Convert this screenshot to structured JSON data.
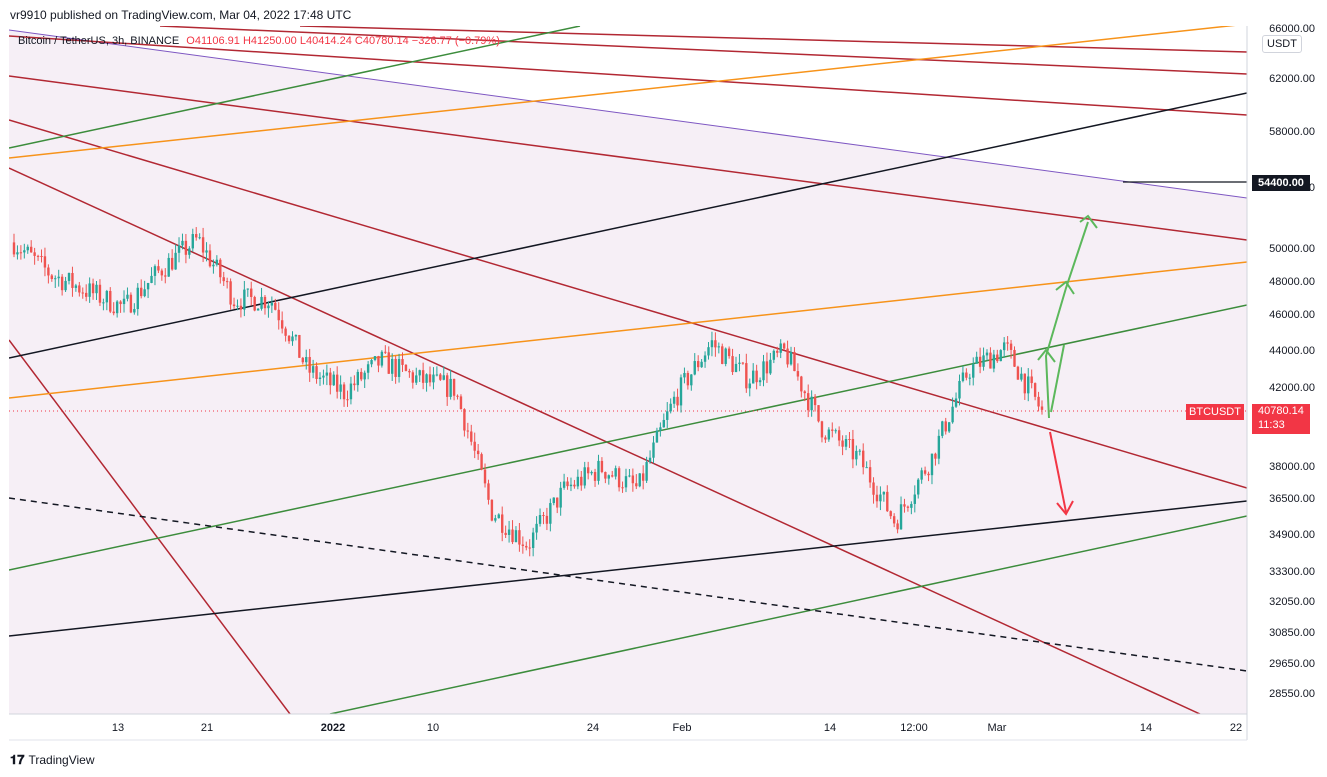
{
  "header": {
    "published": "vr9910 published on TradingView.com, Mar 04, 2022 17:48 UTC"
  },
  "legend": {
    "symbol": "Bitcoin / TetherUS, 3h, BINANCE",
    "open": "O41106.91",
    "high": "H41250.00",
    "low": "L40414.24",
    "close": "C40780.14",
    "change": "−326.77 (−0.79%)"
  },
  "unit": "USDT",
  "symbol_tag": "BTCUSDT",
  "current_price": "40780.14",
  "countdown": "11:33",
  "level_tag": "54400.00",
  "footer": {
    "brand": "TradingView"
  },
  "colors": {
    "red_line": "#b22833",
    "green_line": "#3c8c3c",
    "orange_line": "#f7931a",
    "black_line": "#131722",
    "purple_line": "#7e57c2",
    "up_candle": "#26a69a",
    "down_candle": "#ef5350",
    "zone_fill": "#f5eef6",
    "arrow_up": "#5cb85c",
    "arrow_down": "#f23645"
  },
  "chart_data": {
    "type": "candlestick",
    "title": "Bitcoin / TetherUS, 3h, BINANCE",
    "y_axis_ticks": [
      {
        "value": 66000,
        "label": "66000.00"
      },
      {
        "value": 62000,
        "label": "62000.00"
      },
      {
        "value": 58000,
        "label": "58000.00"
      },
      {
        "value": 54000,
        "label": "54000.00"
      },
      {
        "value": 50000,
        "label": "50000.00"
      },
      {
        "value": 48000,
        "label": "48000.00"
      },
      {
        "value": 46000,
        "label": "46000.00"
      },
      {
        "value": 44000,
        "label": "44000.00"
      },
      {
        "value": 42000,
        "label": "42000.00"
      },
      {
        "value": 38000,
        "label": "38000.00"
      },
      {
        "value": 36500,
        "label": "36500.00"
      },
      {
        "value": 34900,
        "label": "34900.00"
      },
      {
        "value": 33300,
        "label": "33300.00"
      },
      {
        "value": 32050,
        "label": "32050.00"
      },
      {
        "value": 30850,
        "label": "30850.00"
      },
      {
        "value": 29650,
        "label": "29650.00"
      },
      {
        "value": 28550,
        "label": "28550.00"
      }
    ],
    "x_axis_ticks": [
      {
        "label": "13",
        "bold": false
      },
      {
        "label": "21",
        "bold": false
      },
      {
        "label": "2022",
        "bold": true
      },
      {
        "label": "10",
        "bold": false
      },
      {
        "label": "24",
        "bold": false
      },
      {
        "label": "Feb",
        "bold": false
      },
      {
        "label": "14",
        "bold": false
      },
      {
        "label": "12:00",
        "bold": false
      },
      {
        "label": "Mar",
        "bold": false
      },
      {
        "label": "14",
        "bold": false
      },
      {
        "label": "22",
        "bold": false
      }
    ],
    "y_scale": "log",
    "ohlc_last": {
      "open": 41106.91,
      "high": 41250.0,
      "low": 40414.24,
      "close": 40780.14,
      "change": -326.77,
      "change_pct": -0.79
    },
    "marked_level": 54400,
    "approx_closes": [
      {
        "date": "Dec 06",
        "close": 50500
      },
      {
        "date": "Dec 10",
        "close": 48500
      },
      {
        "date": "Dec 14",
        "close": 47500
      },
      {
        "date": "Dec 18",
        "close": 46500
      },
      {
        "date": "Dec 22",
        "close": 48800
      },
      {
        "date": "Dec 27",
        "close": 50700
      },
      {
        "date": "Dec 30",
        "close": 47000
      },
      {
        "date": "Jan 03",
        "close": 47000
      },
      {
        "date": "Jan 06",
        "close": 43000
      },
      {
        "date": "Jan 10",
        "close": 41800
      },
      {
        "date": "Jan 13",
        "close": 43500
      },
      {
        "date": "Jan 17",
        "close": 42500
      },
      {
        "date": "Jan 20",
        "close": 42000
      },
      {
        "date": "Jan 22",
        "close": 36000
      },
      {
        "date": "Jan 24",
        "close": 34500
      },
      {
        "date": "Jan 27",
        "close": 37000
      },
      {
        "date": "Jan 30",
        "close": 38000
      },
      {
        "date": "Feb 03",
        "close": 37000
      },
      {
        "date": "Feb 05",
        "close": 41500
      },
      {
        "date": "Feb 09",
        "close": 44500
      },
      {
        "date": "Feb 12",
        "close": 42500
      },
      {
        "date": "Feb 16",
        "close": 44000
      },
      {
        "date": "Feb 18",
        "close": 40000
      },
      {
        "date": "Feb 21",
        "close": 38500
      },
      {
        "date": "Feb 24",
        "close": 35500
      },
      {
        "date": "Feb 27",
        "close": 38500
      },
      {
        "date": "Feb 28",
        "close": 43000
      },
      {
        "date": "Mar 02",
        "close": 44200
      },
      {
        "date": "Mar 04",
        "close": 40780
      }
    ]
  }
}
